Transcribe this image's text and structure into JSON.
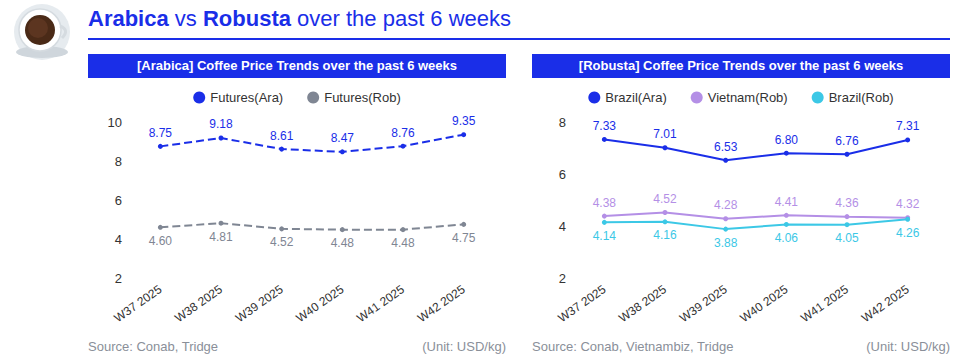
{
  "title": [
    "Arabica",
    " vs ",
    "Robusta",
    " over the past 6 weeks"
  ],
  "chart_data": [
    {
      "type": "line",
      "title": "[Arabica] Coffee Price Trends over the past 6 weeks",
      "categories": [
        "W37 2025",
        "W38 2025",
        "W39 2025",
        "W40 2025",
        "W41 2025",
        "W42 2025"
      ],
      "series": [
        {
          "name": "Futures(Ara)",
          "color": "#1a2ee8",
          "line_style": "dashed",
          "marker": "circle",
          "values": [
            8.75,
            9.18,
            8.61,
            8.47,
            8.76,
            9.35
          ]
        },
        {
          "name": "Futures(Rob)",
          "color": "#7f8693",
          "line_style": "dashed",
          "marker": "circle",
          "values": [
            4.6,
            4.81,
            4.52,
            4.48,
            4.48,
            4.75
          ],
          "value_labels": [
            "4.60",
            "4.81",
            "4.52",
            "4.48",
            "4.48",
            "4.75"
          ]
        }
      ],
      "ylim": [
        2,
        10
      ],
      "yticks": [
        2,
        4,
        6,
        8,
        10
      ],
      "grid": false,
      "legend": "top",
      "data_labels": true,
      "source": "Source: Conab, Tridge",
      "unit": "(Unit: USD/kg)"
    },
    {
      "type": "line",
      "title": "[Robusta] Coffee Price Trends over the past 6 weeks",
      "categories": [
        "W37 2025",
        "W38 2025",
        "W39 2025",
        "W40 2025",
        "W41 2025",
        "W42 2025"
      ],
      "series": [
        {
          "name": "Brazil(Ara)",
          "color": "#1a2ee8",
          "line_style": "solid",
          "marker": "circle",
          "values": [
            7.33,
            7.01,
            6.53,
            6.8,
            6.76,
            7.31
          ],
          "value_labels": [
            "7.33",
            "7.01",
            "6.53",
            "6.80",
            "6.76",
            "7.31"
          ]
        },
        {
          "name": "Vietnam(Rob)",
          "color": "#b48fe6",
          "line_style": "solid",
          "marker": "circle",
          "values": [
            4.38,
            4.52,
            4.28,
            4.41,
            4.36,
            4.32
          ]
        },
        {
          "name": "Brazil(Rob)",
          "color": "#3cc8e6",
          "line_style": "solid",
          "marker": "circle",
          "values": [
            4.14,
            4.16,
            3.88,
            4.06,
            4.05,
            4.26
          ]
        }
      ],
      "ylim": [
        2,
        8
      ],
      "yticks": [
        2,
        4,
        6,
        8
      ],
      "grid": false,
      "legend": "top",
      "data_labels": true,
      "source": "Source: Conab, Vietnambiz, Tridge",
      "unit": "(Unit: USD/kg)"
    }
  ]
}
